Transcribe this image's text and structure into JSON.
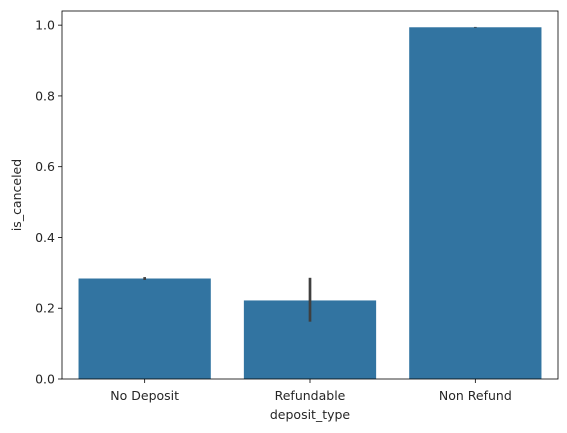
{
  "chart_data": {
    "type": "bar",
    "categories": [
      "No Deposit",
      "Refundable",
      "Non Refund"
    ],
    "values": [
      0.284,
      0.222,
      0.994
    ],
    "error_bars": [
      {
        "low": 0.28,
        "high": 0.288
      },
      {
        "low": 0.162,
        "high": 0.286
      },
      {
        "low": 0.993,
        "high": 0.995
      }
    ],
    "xlabel": "deposit_type",
    "ylabel": "is_canceled",
    "ylim": [
      0,
      1.04
    ],
    "yticks": [
      0.0,
      0.2,
      0.4,
      0.6,
      0.8,
      1.0
    ],
    "ytick_labels": [
      "0.0",
      "0.2",
      "0.4",
      "0.6",
      "0.8",
      "1.0"
    ],
    "grid": false,
    "colors": {
      "bar": "#3274a1",
      "error_bar": "#3f3f3f",
      "axis": "#000000",
      "text": "#262626"
    }
  }
}
